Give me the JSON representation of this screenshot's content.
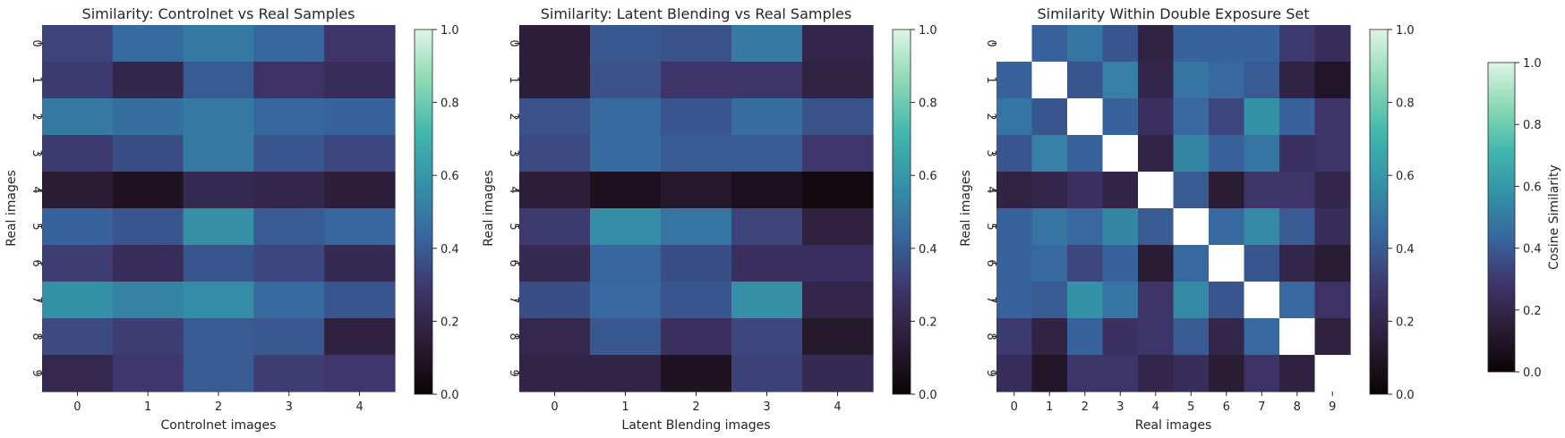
{
  "chart_data": [
    {
      "type": "heatmap",
      "title": "Similarity: Controlnet vs Real Samples",
      "xlabel": "Controlnet images",
      "ylabel": "Real images",
      "x_ticks": [
        "0",
        "1",
        "2",
        "3",
        "4"
      ],
      "y_ticks": [
        "0",
        "1",
        "2",
        "3",
        "4",
        "5",
        "6",
        "7",
        "8",
        "9"
      ],
      "values": [
        [
          0.33,
          0.45,
          0.5,
          0.43,
          0.28
        ],
        [
          0.3,
          0.2,
          0.4,
          0.27,
          0.24
        ],
        [
          0.5,
          0.46,
          0.5,
          0.43,
          0.42
        ],
        [
          0.3,
          0.36,
          0.5,
          0.38,
          0.34
        ],
        [
          0.14,
          0.09,
          0.22,
          0.2,
          0.16
        ],
        [
          0.42,
          0.38,
          0.57,
          0.4,
          0.43
        ],
        [
          0.31,
          0.24,
          0.38,
          0.34,
          0.22
        ],
        [
          0.58,
          0.53,
          0.56,
          0.45,
          0.38
        ],
        [
          0.35,
          0.31,
          0.4,
          0.39,
          0.17
        ],
        [
          0.21,
          0.29,
          0.4,
          0.31,
          0.29
        ]
      ],
      "vmin": 0,
      "vmax": 1,
      "colorbar_ticks": [
        "0.0",
        "0.2",
        "0.4",
        "0.6",
        "0.8",
        "1.0"
      ]
    },
    {
      "type": "heatmap",
      "title": "Similarity: Latent Blending vs Real Samples",
      "xlabel": "Latent Blending images",
      "ylabel": "Real images",
      "x_ticks": [
        "0",
        "1",
        "2",
        "3",
        "4"
      ],
      "y_ticks": [
        "0",
        "1",
        "2",
        "3",
        "4",
        "5",
        "6",
        "7",
        "8",
        "9"
      ],
      "values": [
        [
          0.16,
          0.39,
          0.37,
          0.5,
          0.2
        ],
        [
          0.15,
          0.37,
          0.28,
          0.28,
          0.18
        ],
        [
          0.37,
          0.45,
          0.38,
          0.46,
          0.37
        ],
        [
          0.35,
          0.45,
          0.4,
          0.4,
          0.29
        ],
        [
          0.15,
          0.08,
          0.12,
          0.07,
          0.03
        ],
        [
          0.3,
          0.56,
          0.48,
          0.33,
          0.17
        ],
        [
          0.22,
          0.43,
          0.36,
          0.25,
          0.25
        ],
        [
          0.36,
          0.44,
          0.38,
          0.57,
          0.2
        ],
        [
          0.21,
          0.39,
          0.26,
          0.34,
          0.12
        ],
        [
          0.19,
          0.19,
          0.09,
          0.32,
          0.22
        ]
      ],
      "vmin": 0,
      "vmax": 1,
      "colorbar_ticks": [
        "0.0",
        "0.2",
        "0.4",
        "0.6",
        "0.8",
        "1.0"
      ]
    },
    {
      "type": "heatmap",
      "title": "Similarity Within Double Exposure Set",
      "xlabel": "Real images",
      "ylabel": "Real images",
      "x_ticks": [
        "0",
        "1",
        "2",
        "3",
        "4",
        "5",
        "6",
        "7",
        "8",
        "9"
      ],
      "y_ticks": [
        "0",
        "1",
        "2",
        "3",
        "4",
        "5",
        "6",
        "7",
        "8",
        "9"
      ],
      "values": [
        [
          null,
          0.42,
          0.48,
          0.38,
          0.18,
          0.42,
          0.42,
          0.42,
          0.3,
          0.24
        ],
        [
          0.42,
          null,
          0.38,
          0.52,
          0.2,
          0.48,
          0.44,
          0.4,
          0.18,
          0.1
        ],
        [
          0.48,
          0.38,
          null,
          0.42,
          0.26,
          0.44,
          0.34,
          0.58,
          0.42,
          0.28
        ],
        [
          0.38,
          0.52,
          0.42,
          null,
          0.19,
          0.54,
          0.42,
          0.48,
          0.26,
          0.28
        ],
        [
          0.18,
          0.2,
          0.26,
          0.19,
          null,
          0.4,
          0.14,
          0.28,
          0.28,
          0.2
        ],
        [
          0.42,
          0.48,
          0.44,
          0.54,
          0.4,
          null,
          0.44,
          0.55,
          0.4,
          0.24
        ],
        [
          0.42,
          0.44,
          0.34,
          0.42,
          0.14,
          0.44,
          null,
          0.38,
          0.2,
          0.14
        ],
        [
          0.42,
          0.4,
          0.58,
          0.48,
          0.28,
          0.55,
          0.38,
          null,
          0.44,
          0.27
        ],
        [
          0.3,
          0.18,
          0.42,
          0.26,
          0.28,
          0.4,
          0.2,
          0.44,
          null,
          0.17
        ],
        [
          0.24,
          0.1,
          0.28,
          0.28,
          0.2,
          0.24,
          0.14,
          0.27,
          0.17,
          null
        ]
      ],
      "vmin": 0,
      "vmax": 1,
      "colorbar_ticks": [
        "0.0",
        "0.2",
        "0.4",
        "0.6",
        "0.8",
        "1.0"
      ]
    }
  ],
  "shared_colorbar": {
    "label": "Cosine Similarity",
    "ticks": [
      "0.0",
      "0.2",
      "0.4",
      "0.6",
      "0.8",
      "1.0"
    ],
    "vmin": 0,
    "vmax": 1
  },
  "colormap": {
    "name": "mako",
    "stops": [
      "#0b0405",
      "#2b1c35",
      "#3e356b",
      "#37659e",
      "#348fa7",
      "#40b7ad",
      "#8bd8b4",
      "#def5e5"
    ]
  }
}
